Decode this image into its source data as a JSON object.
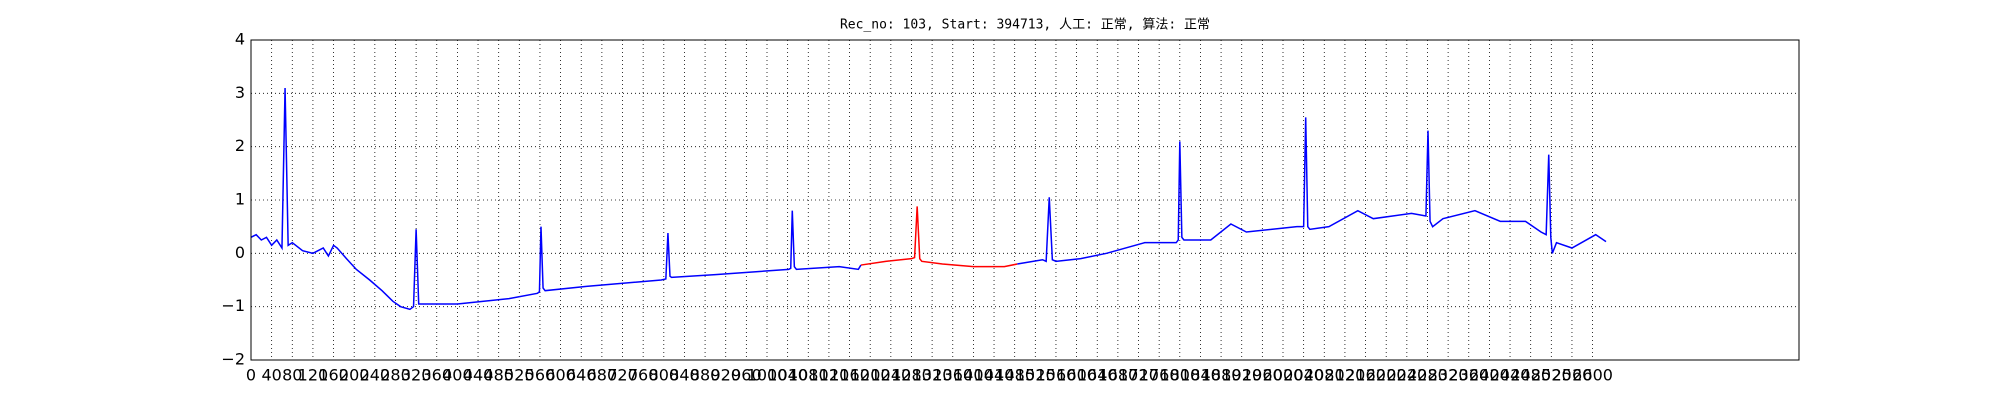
{
  "chart_data": {
    "type": "line",
    "title": "Rec_no: 103, Start: 394713, 人工: 正常, 算法: 正常",
    "x": [
      0,
      10,
      20,
      30,
      40,
      50,
      60,
      66,
      72,
      80,
      100,
      120,
      140,
      150,
      160,
      167,
      185,
      204,
      230,
      254,
      275,
      290,
      308,
      315,
      320,
      325,
      400,
      500,
      555,
      559,
      562,
      566,
      570,
      650,
      795,
      804,
      808,
      812,
      815,
      900,
      1042,
      1046,
      1049,
      1053,
      1057,
      1140,
      1177,
      1182,
      1230,
      1280,
      1286,
      1291,
      1296,
      1300,
      1340,
      1400,
      1460,
      1485,
      1534,
      1541,
      1547,
      1553,
      1560,
      1608,
      1658,
      1732,
      1793,
      1797,
      1800,
      1804,
      1808,
      1860,
      1899,
      1929,
      2027,
      2040,
      2044,
      2048,
      2052,
      2089,
      2145,
      2175,
      2249,
      2277,
      2281,
      2285,
      2290,
      2310,
      2372,
      2421,
      2470,
      2500,
      2510,
      2515,
      2519,
      2522,
      2530,
      2560,
      2606,
      2626
    ],
    "series": [
      {
        "color": "#0000ff",
        "values": [
          0.3,
          0.35,
          0.25,
          0.3,
          0.15,
          0.25,
          0.1,
          3.1,
          0.15,
          0.2,
          0.05,
          0.0,
          0.1,
          -0.05,
          0.15,
          0.1,
          -0.1,
          -0.3,
          -0.5,
          -0.7,
          -0.9,
          -1.0,
          -1.05,
          -1.0,
          0.45,
          -0.95,
          -0.95,
          -0.85,
          -0.75,
          -0.72,
          0.5,
          -0.65,
          -0.7,
          -0.62,
          -0.5,
          -0.48,
          0.38,
          -0.43,
          -0.45,
          -0.4,
          -0.3,
          -0.28,
          0.8,
          -0.25,
          -0.3,
          -0.25,
          -0.3,
          -0.22,
          null,
          null,
          null,
          null,
          null,
          null,
          null,
          null,
          null,
          -0.2,
          -0.12,
          -0.15,
          1.05,
          -0.12,
          -0.15,
          -0.1,
          0.0,
          0.2,
          0.2,
          0.25,
          2.1,
          0.3,
          0.25,
          0.25,
          0.55,
          0.4,
          0.5,
          0.5,
          2.55,
          0.5,
          0.45,
          0.5,
          0.8,
          0.65,
          0.75,
          0.7,
          2.3,
          0.6,
          0.5,
          0.65,
          0.8,
          0.6,
          0.6,
          0.4,
          0.35,
          1.85,
          0.3,
          0.0,
          0.2,
          0.1,
          0.35,
          0.22
        ]
      },
      {
        "color": "#ff0000",
        "values": [
          null,
          null,
          null,
          null,
          null,
          null,
          null,
          null,
          null,
          null,
          null,
          null,
          null,
          null,
          null,
          null,
          null,
          null,
          null,
          null,
          null,
          null,
          null,
          null,
          null,
          null,
          null,
          null,
          null,
          null,
          null,
          null,
          null,
          null,
          null,
          null,
          null,
          null,
          null,
          null,
          null,
          null,
          null,
          null,
          null,
          null,
          null,
          -0.22,
          -0.15,
          -0.1,
          -0.08,
          0.88,
          -0.1,
          -0.15,
          -0.2,
          -0.25,
          -0.25,
          -0.2,
          null,
          null,
          null,
          null,
          null,
          null,
          null,
          null,
          null,
          null,
          null,
          null,
          null,
          null,
          null,
          null,
          null,
          null,
          null,
          null,
          null,
          null,
          null,
          null,
          null,
          null,
          null,
          null,
          null,
          null,
          null,
          null,
          null,
          null,
          null,
          null,
          null,
          null,
          null,
          null,
          null,
          null
        ]
      }
    ],
    "xlim": [
      0,
      3000
    ],
    "xticks": [
      0,
      40,
      80,
      120,
      160,
      200,
      240,
      280,
      320,
      360,
      400,
      440,
      480,
      520,
      560,
      600,
      640,
      680,
      720,
      760,
      800,
      840,
      880,
      920,
      960,
      1000,
      1040,
      1080,
      1120,
      1160,
      1200,
      1240,
      1280,
      1320,
      1360,
      1400,
      1440,
      1480,
      1520,
      1560,
      1600,
      1640,
      1680,
      1720,
      1760,
      1800,
      1840,
      1880,
      1920,
      1960,
      2000,
      2040,
      2080,
      2120,
      2160,
      2200,
      2240,
      2280,
      2320,
      2360,
      2400,
      2440,
      2480,
      2520,
      2560,
      2600
    ],
    "ylim": [
      -2,
      4
    ],
    "yticks": [
      {
        "value": -2,
        "label": "−2"
      },
      {
        "value": -1,
        "label": "−1"
      },
      0,
      1,
      2,
      3,
      4
    ],
    "grid": true
  }
}
